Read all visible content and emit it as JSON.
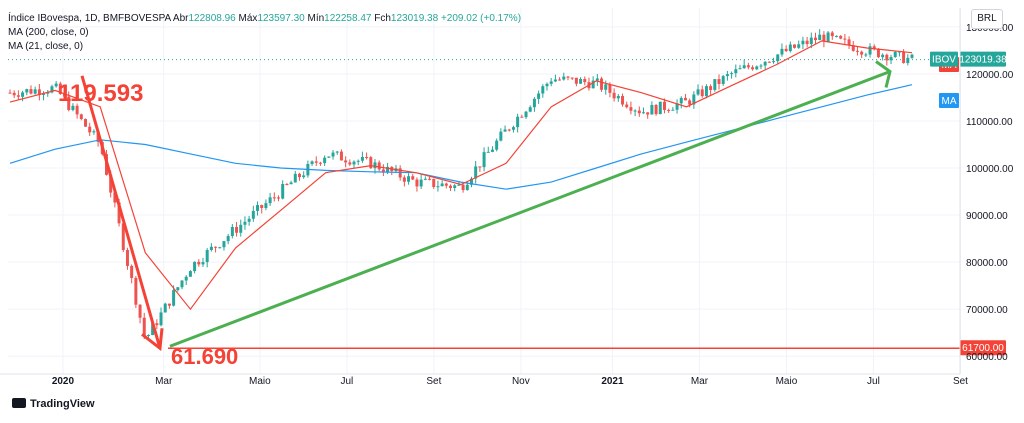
{
  "header": {
    "title": "Índice IBovespa, 1D, BMFBOVESPA",
    "open_label": "Abr",
    "open_value": "122808.96",
    "high_label": "Máx",
    "high_value": "123597.30",
    "low_label": "Mín",
    "low_value": "122258.47",
    "close_label": "Fch",
    "close_value": "123019.38",
    "change": "+209.02 (+0.17%)",
    "ma200_label": "MA (200, close, 0)",
    "ma21_label": "MA (21, close, 0)"
  },
  "currency": "BRL",
  "brand": "TradingView",
  "annotations": {
    "peak_label": "119.593",
    "bottom_label": "61.690",
    "price_tag_ma21": "MA",
    "price_tag_ibov_name": "IBOV",
    "price_tag_ibov_value": "123019.38",
    "price_tag_ma200": "MA",
    "line_tag": "61700.00"
  },
  "colors": {
    "up": "#26a69a",
    "down": "#ef5350",
    "ma200": "#2196f3",
    "ma21": "#f44336",
    "trend": "#4caf50",
    "annotation": "#f44336",
    "grid": "#f0f3fa"
  },
  "chart_data": {
    "type": "line",
    "title": "Índice IBovespa, 1D, BMFBOVESPA",
    "x_ticks": [
      "2020",
      "Mar",
      "Maio",
      "Jul",
      "Set",
      "Nov",
      "2021",
      "Mar",
      "Maio",
      "Jul",
      "Set"
    ],
    "y_ticks": [
      "130000.00",
      "120000.00",
      "110000.00",
      "100000.00",
      "90000.00",
      "80000.00",
      "70000.00",
      "60000.00"
    ],
    "ylim": [
      57500,
      134000
    ],
    "x": [
      "2020-01",
      "2020-02",
      "2020-03",
      "2020-03b",
      "2020-04",
      "2020-05",
      "2020-06",
      "2020-07",
      "2020-08",
      "2020-09",
      "2020-10",
      "2020-11",
      "2020-12",
      "2021-01",
      "2021-02",
      "2021-03",
      "2021-04",
      "2021-05",
      "2021-06",
      "2021-07",
      "2021-08"
    ],
    "series": [
      {
        "name": "IBOV",
        "values": [
          116000,
          117000,
          105000,
          63500,
          79000,
          87000,
          95000,
          103000,
          101000,
          97000,
          96000,
          108000,
          119000,
          118000,
          112000,
          114000,
          120000,
          124000,
          128000,
          125000,
          123019
        ]
      },
      {
        "name": "MA (21, close, 0)",
        "values": [
          114000,
          116500,
          113000,
          82000,
          70000,
          83000,
          91000,
          99000,
          100500,
          99000,
          96500,
          101000,
          113000,
          118500,
          116000,
          113000,
          117500,
          122000,
          127000,
          125500,
          124500
        ]
      },
      {
        "name": "MA (200, close, 0)",
        "values": [
          101000,
          104000,
          106000,
          105000,
          103000,
          101000,
          100000,
          99500,
          99200,
          99000,
          97000,
          95500,
          97000,
          100000,
          103000,
          105500,
          108000,
          110500,
          113000,
          115500,
          117700
        ]
      }
    ],
    "horizontal_line": 61700,
    "peak": {
      "value": 119593
    },
    "bottom": {
      "value": 61690
    },
    "last_close": 123019.38
  }
}
